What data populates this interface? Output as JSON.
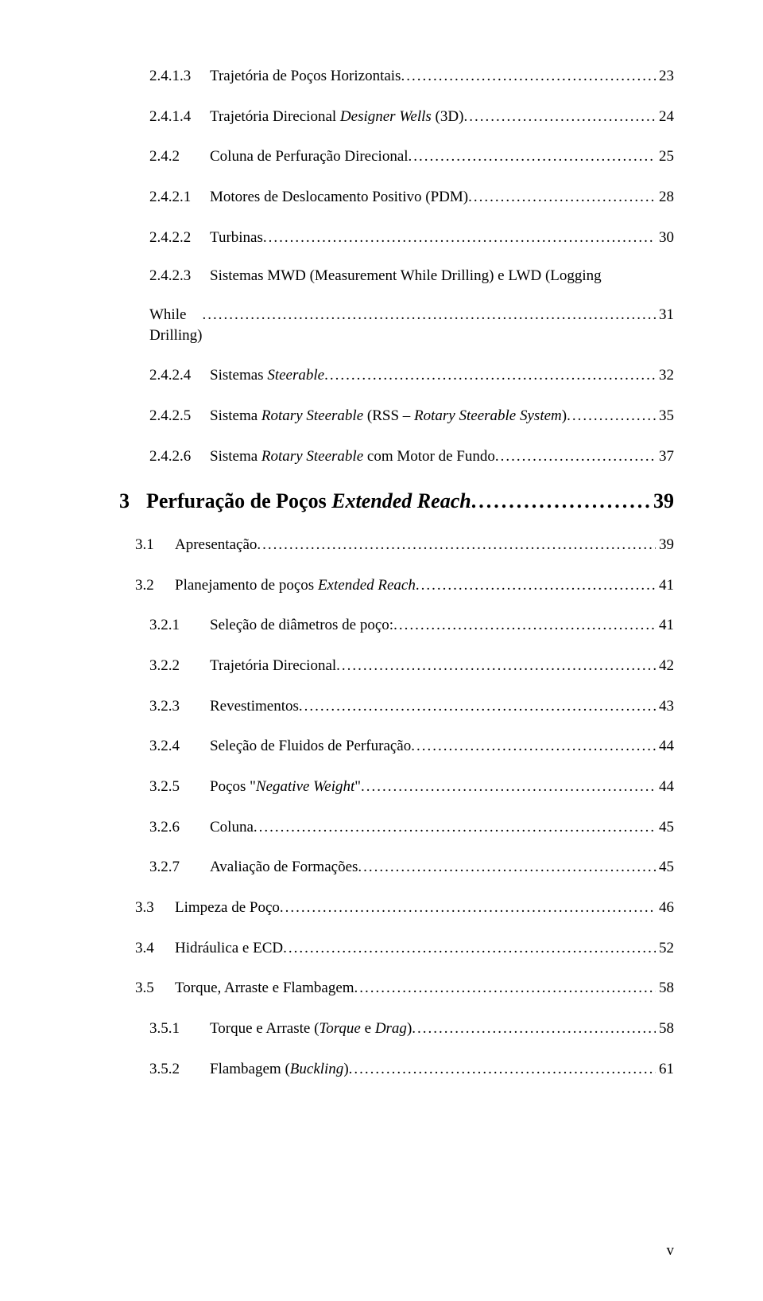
{
  "toc": {
    "e0": {
      "num": "2.4.1.3",
      "label": "Trajetória de Poços Horizontais",
      "pg": "23"
    },
    "e1": {
      "num": "2.4.1.4",
      "label_a": "Trajetória Direcional ",
      "label_b": "Designer Wells",
      "label_c": " (3D)",
      "pg": "24"
    },
    "e2": {
      "num": "2.4.2",
      "label": "Coluna de Perfuração Direcional",
      "pg": "25"
    },
    "e3": {
      "num": "2.4.2.1",
      "label": "Motores de Deslocamento Positivo (PDM)",
      "pg": "28"
    },
    "e4": {
      "num": "2.4.2.2",
      "label": "Turbinas",
      "pg": "30"
    },
    "e5": {
      "num": "2.4.2.3",
      "label_top": "Sistemas MWD (Measurement While Drilling) e LWD (Logging",
      "label_bottom": "While Drilling)",
      "pg": "31"
    },
    "e6": {
      "num": "2.4.2.4",
      "label_a": "Sistemas ",
      "label_b": "Steerable",
      "pg": "32"
    },
    "e7": {
      "num": "2.4.2.5",
      "label_a": "Sistema ",
      "label_b": "Rotary Steerable",
      "label_c": " (RSS – ",
      "label_d": "Rotary Steerable System",
      "label_e": ")",
      "pg": "35"
    },
    "e8": {
      "num": "2.4.2.6",
      "label_a": "Sistema ",
      "label_b": "Rotary Steerable",
      "label_c": " com Motor de Fundo",
      "pg": "37"
    },
    "e9": {
      "num": "3",
      "label_a": "Perfuração de Poços ",
      "label_b": "Extended Reach",
      "pg": "39"
    },
    "e10": {
      "num": "3.1",
      "label": "Apresentação",
      "pg": "39"
    },
    "e11": {
      "num": "3.2",
      "label_a": "Planejamento de poços ",
      "label_b": "Extended Reach",
      "pg": "41"
    },
    "e12": {
      "num": "3.2.1",
      "label": "Seleção de diâmetros de poço:",
      "pg": "41"
    },
    "e13": {
      "num": "3.2.2",
      "label": "Trajetória Direcional",
      "pg": "42"
    },
    "e14": {
      "num": "3.2.3",
      "label": "Revestimentos",
      "pg": "43"
    },
    "e15": {
      "num": "3.2.4",
      "label": "Seleção de Fluidos de Perfuração",
      "pg": "44"
    },
    "e16": {
      "num": "3.2.5",
      "label_a": "Poços \"",
      "label_b": "Negative Weight",
      "label_c": "\"",
      "pg": "44"
    },
    "e17": {
      "num": "3.2.6",
      "label": "Coluna",
      "pg": "45"
    },
    "e18": {
      "num": "3.2.7",
      "label": "Avaliação de Formações",
      "pg": "45"
    },
    "e19": {
      "num": "3.3",
      "label": "Limpeza de Poço",
      "pg": "46"
    },
    "e20": {
      "num": "3.4",
      "label": "Hidráulica e ECD",
      "pg": "52"
    },
    "e21": {
      "num": "3.5",
      "label": "Torque, Arraste e Flambagem",
      "pg": "58"
    },
    "e22": {
      "num": "3.5.1",
      "label_a": "Torque e Arraste (",
      "label_b": "Torque",
      "label_c": " e ",
      "label_d": "Drag",
      "label_e": ")",
      "pg": "58"
    },
    "e23": {
      "num": "3.5.2",
      "label_a": "Flambagem (",
      "label_b": "Buckling",
      "label_c": ")",
      "pg": "61"
    }
  },
  "footer": {
    "page_roman": "v"
  }
}
